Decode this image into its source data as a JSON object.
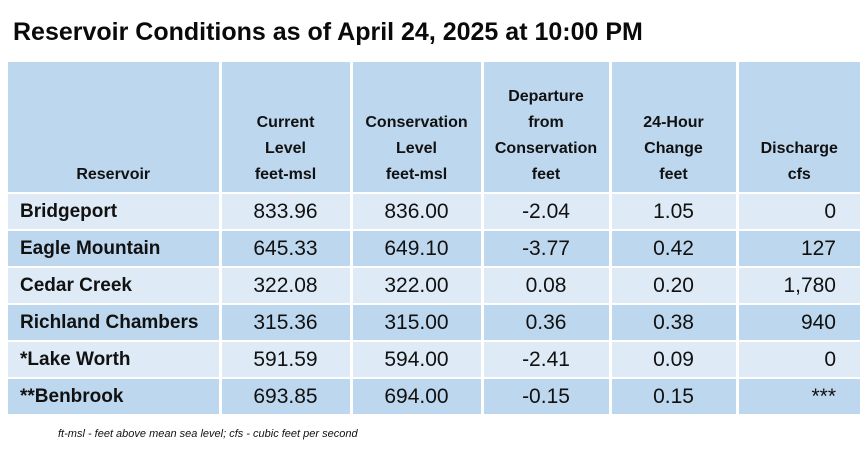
{
  "title": "Reservoir Conditions as of April 24, 2025 at 10:00 PM",
  "table": {
    "headers": [
      {
        "lines": [
          "Reservoir"
        ]
      },
      {
        "lines": [
          "Current",
          "Level",
          "feet-msl"
        ]
      },
      {
        "lines": [
          "Conservation",
          "Level",
          "feet-msl"
        ]
      },
      {
        "lines": [
          "Departure",
          "from",
          "Conservation",
          "feet"
        ]
      },
      {
        "lines": [
          "24-Hour",
          "Change",
          "feet"
        ]
      },
      {
        "lines": [
          "Discharge",
          "cfs"
        ]
      }
    ],
    "rows": [
      {
        "reservoir": "Bridgeport",
        "current": "833.96",
        "conservation": "836.00",
        "departure": "-2.04",
        "change": "1.05",
        "discharge": "0"
      },
      {
        "reservoir": "Eagle Mountain",
        "current": "645.33",
        "conservation": "649.10",
        "departure": "-3.77",
        "change": "0.42",
        "discharge": "127"
      },
      {
        "reservoir": "Cedar Creek",
        "current": "322.08",
        "conservation": "322.00",
        "departure": "0.08",
        "change": "0.20",
        "discharge": "1,780"
      },
      {
        "reservoir": "Richland Chambers",
        "current": "315.36",
        "conservation": "315.00",
        "departure": "0.36",
        "change": "0.38",
        "discharge": "940"
      },
      {
        "reservoir": "*Lake Worth",
        "current": "591.59",
        "conservation": "594.00",
        "departure": "-2.41",
        "change": "0.09",
        "discharge": "0"
      },
      {
        "reservoir": "**Benbrook",
        "current": "693.85",
        "conservation": "694.00",
        "departure": "-0.15",
        "change": "0.15",
        "discharge": "***"
      }
    ]
  },
  "footnote": "ft-msl - feet above mean sea level; cfs - cubic feet per second",
  "colors": {
    "header_bg": "#bdd7ee",
    "row_light": "#deebf7",
    "row_dark": "#bdd7ee"
  }
}
